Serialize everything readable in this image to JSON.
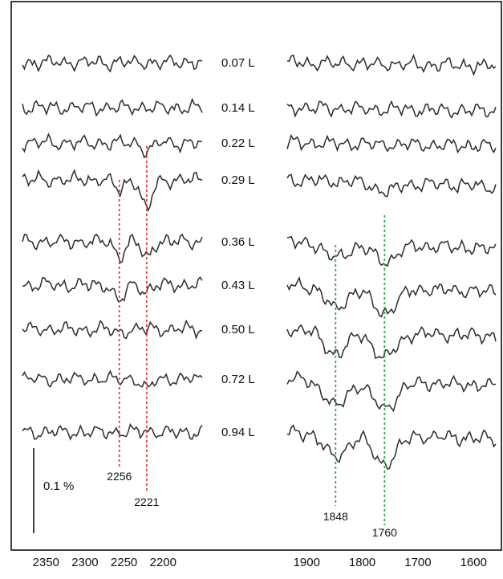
{
  "chart_data": [
    {
      "type": "line",
      "panel": "left",
      "x_range": [
        2380,
        2150
      ],
      "x_ticks": [
        2350,
        2300,
        2250,
        2200
      ],
      "x_tick_labels": [
        "2350",
        "2300",
        "2250",
        "2200"
      ],
      "series": [
        {
          "name": "0.07 L",
          "dips": []
        },
        {
          "name": "0.14 L",
          "dips": []
        },
        {
          "name": "0.22 L",
          "dips": [
            {
              "x": 2221,
              "depth": 0.4
            }
          ]
        },
        {
          "name": "0.29 L",
          "dips": [
            {
              "x": 2256,
              "depth": 0.5
            },
            {
              "x": 2221,
              "depth": 1.5
            }
          ]
        },
        {
          "name": "0.36 L",
          "dips": [
            {
              "x": 2256,
              "depth": 0.7
            },
            {
              "x": 2221,
              "depth": 0.8
            }
          ]
        },
        {
          "name": "0.43 L",
          "dips": [
            {
              "x": 2256,
              "depth": 0.8
            },
            {
              "x": 2221,
              "depth": 0.3
            }
          ]
        },
        {
          "name": "0.50 L",
          "dips": [
            {
              "x": 2256,
              "depth": 0.2
            }
          ]
        },
        {
          "name": "0.72 L",
          "dips": [
            {
              "x": 2221,
              "depth": 0.5
            }
          ]
        },
        {
          "name": "0.94 L",
          "dips": []
        }
      ],
      "reference_lines": [
        {
          "x": 2256,
          "label": "2256",
          "color": "#e8394a"
        },
        {
          "x": 2221,
          "label": "2221",
          "color": "#e8394a"
        }
      ]
    },
    {
      "type": "line",
      "panel": "right",
      "x_range": [
        1935,
        1560
      ],
      "x_ticks": [
        1900,
        1800,
        1700,
        1600
      ],
      "x_tick_labels": [
        "1900",
        "1800",
        "1700",
        "1600"
      ],
      "series": [
        {
          "name": "0.07 L",
          "dips": []
        },
        {
          "name": "0.14 L",
          "dips": []
        },
        {
          "name": "0.22 L",
          "dips": []
        },
        {
          "name": "0.29 L",
          "dips": [
            {
              "x": 1760,
              "depth": 0.4
            }
          ]
        },
        {
          "name": "0.36 L",
          "dips": [
            {
              "x": 1848,
              "depth": 0.7
            },
            {
              "x": 1760,
              "depth": 0.8
            }
          ]
        },
        {
          "name": "0.43 L",
          "dips": [
            {
              "x": 1848,
              "depth": 1.0
            },
            {
              "x": 1760,
              "depth": 1.2
            }
          ]
        },
        {
          "name": "0.50 L",
          "dips": [
            {
              "x": 1848,
              "depth": 1.1
            },
            {
              "x": 1760,
              "depth": 1.2
            }
          ]
        },
        {
          "name": "0.72 L",
          "dips": [
            {
              "x": 1848,
              "depth": 1.2
            },
            {
              "x": 1760,
              "depth": 1.3
            }
          ]
        },
        {
          "name": "0.94 L",
          "dips": [
            {
              "x": 1848,
              "depth": 1.1
            },
            {
              "x": 1760,
              "depth": 1.4
            }
          ]
        }
      ],
      "reference_lines": [
        {
          "x": 1848,
          "label": "1848",
          "color": "#2ea84a"
        },
        {
          "x": 1760,
          "label": "1760",
          "color": "#2ea84a"
        }
      ]
    }
  ],
  "scale_bar": {
    "value": 0.1,
    "label": "0.1 %"
  },
  "colors": {
    "trace": "#2b2b2b",
    "left_markers": "#e8394a",
    "right_markers": "#2ea84a",
    "frame": "#111111"
  }
}
